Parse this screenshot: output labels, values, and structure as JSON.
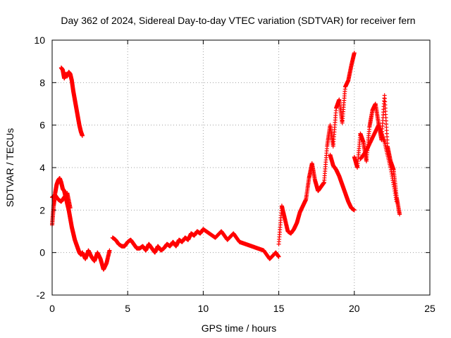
{
  "chart_data": {
    "type": "scatter",
    "title": "Day 362 of 2024, Sidereal Day-to-day VTEC variation (SDTVAR) for receiver fern",
    "xlabel": "GPS time / hours",
    "ylabel": "SDTVAR / TECUs",
    "xlim": [
      0,
      25
    ],
    "ylim": [
      -2,
      10
    ],
    "xticks": [
      0,
      5,
      10,
      15,
      20,
      25
    ],
    "yticks": [
      -2,
      0,
      2,
      4,
      6,
      8,
      10
    ],
    "grid": true,
    "marker": "+",
    "color": "#ff0000",
    "series": [
      {
        "name": "SDTVAR",
        "segments": [
          {
            "x": [
              0.0,
              0.1,
              0.2,
              0.3,
              0.4,
              0.5,
              0.6,
              0.7,
              0.8,
              0.9,
              1.0,
              1.1,
              1.2,
              1.3,
              1.4,
              1.5,
              1.6,
              1.7,
              1.8,
              1.9,
              2.0
            ],
            "y": [
              1.3,
              2.2,
              2.8,
              3.2,
              3.4,
              3.5,
              3.3,
              3.0,
              2.9,
              2.6,
              2.3,
              2.0,
              1.6,
              1.2,
              0.9,
              0.6,
              0.4,
              0.2,
              0.0,
              -0.1,
              0.0
            ]
          },
          {
            "x": [
              0.0,
              0.2,
              0.4,
              0.6,
              0.8,
              1.0,
              1.2
            ],
            "y": [
              2.6,
              2.7,
              2.5,
              2.4,
              2.6,
              2.8,
              2.1
            ]
          },
          {
            "x": [
              0.6,
              0.7,
              0.8,
              0.9,
              1.0,
              1.1,
              1.2,
              1.3,
              1.4,
              1.5,
              1.6,
              1.7,
              1.8,
              1.9,
              2.0
            ],
            "y": [
              8.7,
              8.6,
              8.2,
              8.4,
              8.3,
              8.5,
              8.4,
              8.1,
              7.6,
              7.2,
              6.8,
              6.4,
              6.0,
              5.7,
              5.5
            ]
          },
          {
            "x": [
              2.0,
              2.2,
              2.4,
              2.6,
              2.8,
              3.0,
              3.2,
              3.4,
              3.6,
              3.8
            ],
            "y": [
              0.0,
              -0.3,
              0.1,
              -0.2,
              -0.4,
              0.0,
              -0.3,
              -0.8,
              -0.5,
              0.1
            ]
          },
          {
            "x": [
              4.0,
              4.2,
              4.4,
              4.6,
              4.8,
              5.0,
              5.2,
              5.4,
              5.6,
              5.8,
              6.0,
              6.2,
              6.4,
              6.6,
              6.8,
              7.0,
              7.2,
              7.4,
              7.6,
              7.8,
              8.0,
              8.2,
              8.4,
              8.6,
              8.8,
              9.0,
              9.2,
              9.4,
              9.6,
              9.8,
              10.0
            ],
            "y": [
              0.7,
              0.6,
              0.4,
              0.3,
              0.3,
              0.5,
              0.6,
              0.4,
              0.2,
              0.2,
              0.3,
              0.1,
              0.4,
              0.2,
              0.0,
              0.3,
              0.1,
              0.2,
              0.4,
              0.3,
              0.5,
              0.3,
              0.6,
              0.5,
              0.7,
              0.6,
              0.9,
              0.8,
              1.0,
              0.9,
              1.1
            ]
          },
          {
            "x": [
              10.0,
              10.4,
              10.8,
              11.2,
              11.6,
              12.0,
              12.4,
              12.8,
              13.2,
              13.6,
              14.0,
              14.4,
              14.8,
              15.0
            ],
            "y": [
              1.1,
              0.9,
              0.7,
              1.0,
              0.6,
              0.9,
              0.5,
              0.4,
              0.3,
              0.2,
              0.1,
              -0.3,
              0.0,
              -0.2
            ]
          },
          {
            "x": [
              15.0,
              15.2,
              15.4,
              15.6,
              15.8,
              16.0,
              16.2,
              16.4,
              16.6,
              16.8,
              17.0,
              17.2,
              17.4,
              17.6,
              17.8,
              18.0
            ],
            "y": [
              0.4,
              2.2,
              1.6,
              1.0,
              0.9,
              1.1,
              1.4,
              1.9,
              2.2,
              2.5,
              3.5,
              4.2,
              3.4,
              2.9,
              3.1,
              3.3
            ]
          },
          {
            "x": [
              18.0,
              18.2,
              18.4,
              18.6,
              18.8,
              19.0,
              19.2,
              19.4,
              19.6,
              19.8,
              20.0
            ],
            "y": [
              3.3,
              5.0,
              6.0,
              5.0,
              6.8,
              7.2,
              6.1,
              7.8,
              8.1,
              8.8,
              9.4
            ]
          },
          {
            "x": [
              18.4,
              18.6,
              18.8,
              19.0,
              19.2,
              19.4,
              19.6,
              19.8,
              20.0
            ],
            "y": [
              4.6,
              4.1,
              3.9,
              3.6,
              3.2,
              2.8,
              2.4,
              2.1,
              2.0
            ]
          },
          {
            "x": [
              20.0,
              20.2,
              20.4,
              20.6,
              20.8,
              21.0,
              21.2,
              21.4,
              21.6,
              21.8,
              22.0,
              22.2,
              22.4,
              22.6,
              22.8,
              23.0
            ],
            "y": [
              4.5,
              4.0,
              5.6,
              5.2,
              4.3,
              5.9,
              6.7,
              7.0,
              6.1,
              5.3,
              7.4,
              5.0,
              4.3,
              3.9,
              2.6,
              1.8
            ]
          },
          {
            "x": [
              20.4,
              20.8,
              21.2,
              21.6,
              22.0,
              22.4,
              22.8
            ],
            "y": [
              4.4,
              4.8,
              5.4,
              6.0,
              5.2,
              4.0,
              2.4
            ]
          }
        ]
      }
    ]
  }
}
